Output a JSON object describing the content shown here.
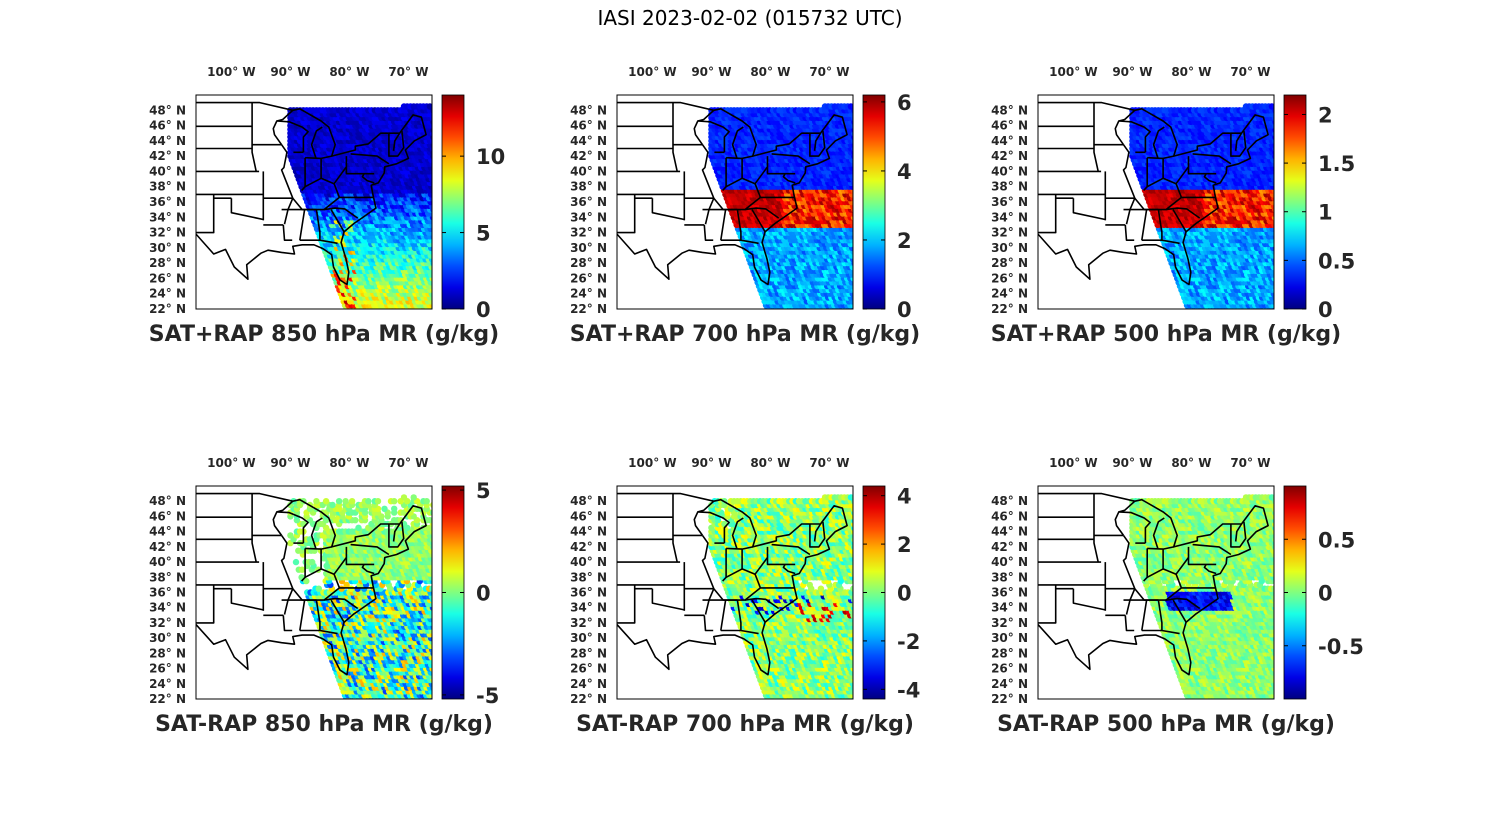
{
  "figure": {
    "title": "IASI 2023-02-02 (015732 UTC)"
  },
  "longitude_labels": [
    "100° W",
    "90° W",
    "80° W",
    "70° W"
  ],
  "latitude_labels": [
    "48° N",
    "46° N",
    "44° N",
    "42° N",
    "40° N",
    "38° N",
    "36° N",
    "34° N",
    "32° N",
    "30° N",
    "28° N",
    "26° N",
    "24° N",
    "22° N"
  ],
  "colormap": "jet",
  "colors": {
    "state_lines": "#000000",
    "no_data": "#ffffff",
    "text": "#262626"
  },
  "chart_data": [
    {
      "type": "heatmap",
      "title": "SAT+RAP 850 hPa MR (g/kg)",
      "variable": "mixing ratio",
      "level_hPa": 850,
      "colorbar": {
        "min": 0,
        "max": 14,
        "ticks": [
          0,
          5,
          10
        ],
        "tick_labels": [
          "0",
          "5",
          "10"
        ]
      },
      "field_pattern": "dry-north-moist-south"
    },
    {
      "type": "heatmap",
      "title": "SAT+RAP 700 hPa MR (g/kg)",
      "variable": "mixing ratio",
      "level_hPa": 700,
      "colorbar": {
        "min": 0,
        "max": 6.2,
        "ticks": [
          0,
          2,
          4,
          6
        ],
        "tick_labels": [
          "0",
          "2",
          "4",
          "6"
        ]
      },
      "field_pattern": "moist-band-36N"
    },
    {
      "type": "heatmap",
      "title": "SAT+RAP 500 hPa MR (g/kg)",
      "variable": "mixing ratio",
      "level_hPa": 500,
      "colorbar": {
        "min": 0,
        "max": 2.2,
        "ticks": [
          0,
          0.5,
          1,
          1.5,
          2
        ],
        "tick_labels": [
          "0",
          "0.5",
          "1",
          "1.5",
          "2"
        ]
      },
      "field_pattern": "moist-band-36N"
    },
    {
      "type": "heatmap",
      "title": "SAT-RAP 850 hPa MR (g/kg)",
      "variable": "mixing ratio difference",
      "level_hPa": 850,
      "colorbar": {
        "min": -5.2,
        "max": 5.2,
        "ticks": [
          -5,
          0,
          5
        ],
        "tick_labels": [
          "-5",
          "0",
          "5"
        ]
      },
      "field_pattern": "difference-gappy"
    },
    {
      "type": "heatmap",
      "title": "SAT-RAP 700 hPa MR (g/kg)",
      "variable": "mixing ratio difference",
      "level_hPa": 700,
      "colorbar": {
        "min": -4.4,
        "max": 4.4,
        "ticks": [
          -4,
          -2,
          0,
          2,
          4
        ],
        "tick_labels": [
          "-4",
          "-2",
          "0",
          "2",
          "4"
        ]
      },
      "field_pattern": "difference-dry-spots"
    },
    {
      "type": "heatmap",
      "title": "SAT-RAP 500 hPa MR (g/kg)",
      "variable": "mixing ratio difference",
      "level_hPa": 500,
      "colorbar": {
        "min": -1,
        "max": 1,
        "ticks": [
          -0.5,
          0,
          0.5
        ],
        "tick_labels": [
          "-0.5",
          "0",
          "0.5"
        ]
      },
      "field_pattern": "difference-dry-band"
    }
  ]
}
